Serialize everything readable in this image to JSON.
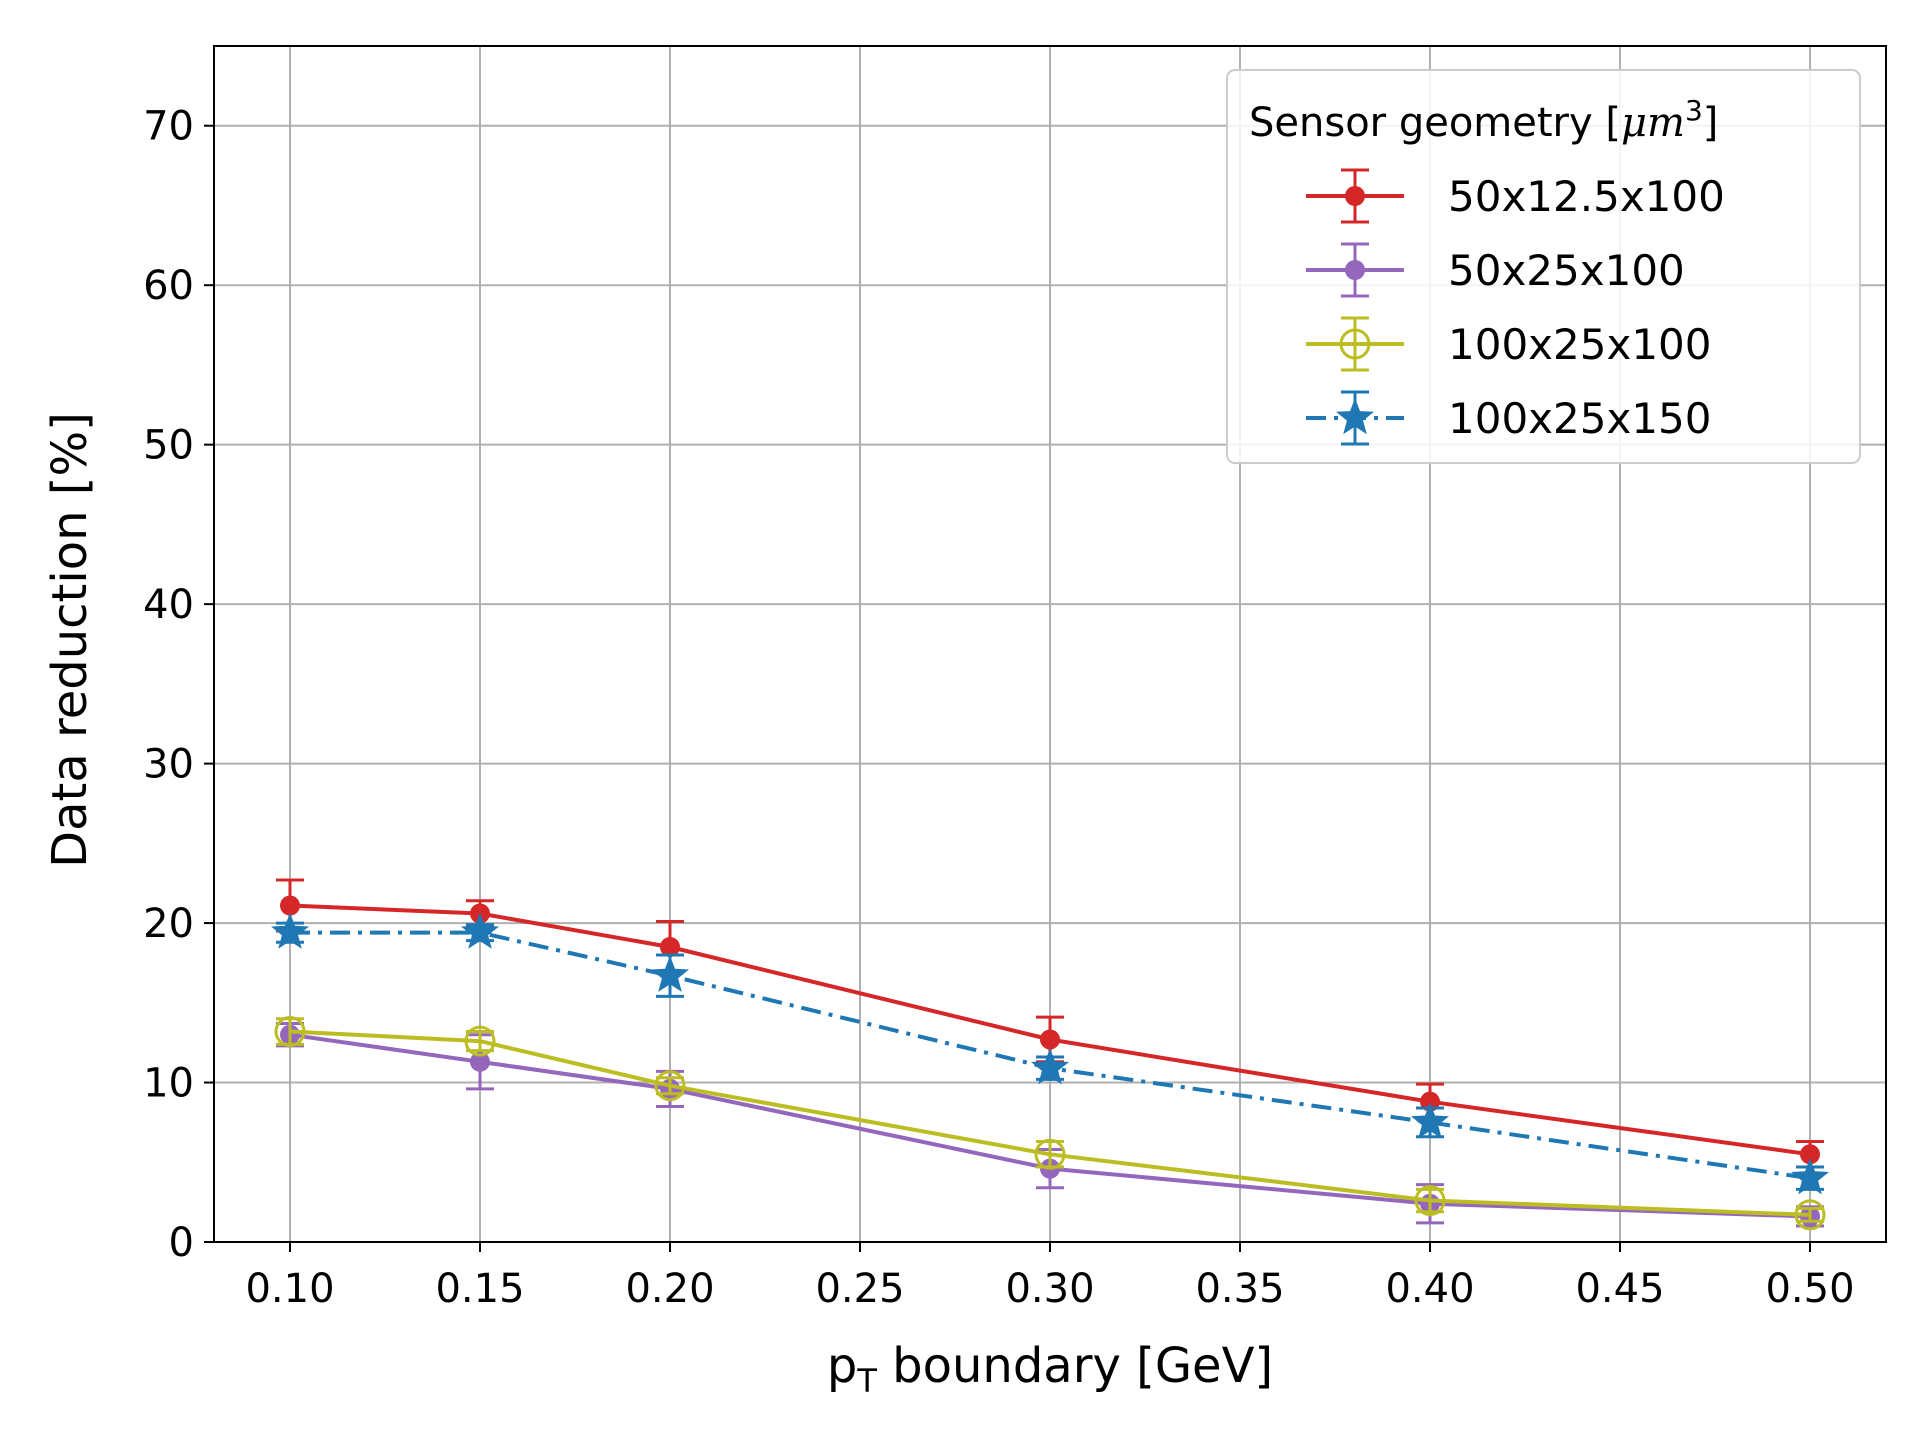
{
  "chart_data": {
    "type": "line",
    "x": [
      0.1,
      0.15,
      0.2,
      0.3,
      0.4,
      0.5
    ],
    "xlabel_main": "p",
    "xlabel_sub": "T",
    "xlabel_rest": " boundary [GeV]",
    "ylabel": "Data reduction [%]",
    "xlim": [
      0.08,
      0.52
    ],
    "ylim": [
      0,
      75
    ],
    "xticks": [
      "0.10",
      "0.15",
      "0.20",
      "0.25",
      "0.30",
      "0.35",
      "0.40",
      "0.45",
      "0.50"
    ],
    "yticks": [
      "0",
      "10",
      "20",
      "30",
      "40",
      "50",
      "60",
      "70"
    ],
    "grid": true,
    "legend": {
      "title_main": "Sensor geometry [",
      "title_math": "μm",
      "title_sup": "3",
      "title_close": "]",
      "placement": "top-right"
    },
    "series": [
      {
        "name": "50x12.5x100",
        "color": "#d62728",
        "marker": "circle",
        "linestyle": "solid",
        "values": [
          21.1,
          20.6,
          18.5,
          12.7,
          8.8,
          5.5
        ],
        "errors": [
          1.6,
          0.8,
          1.6,
          1.4,
          1.1,
          0.8
        ]
      },
      {
        "name": "50x25x100",
        "color": "#9467bd",
        "marker": "circle",
        "linestyle": "solid",
        "values": [
          13.0,
          11.3,
          9.6,
          4.6,
          2.4,
          1.6
        ],
        "errors": [
          0.7,
          1.7,
          1.1,
          1.2,
          1.2,
          0.6
        ]
      },
      {
        "name": "100x25x100",
        "color": "#bcbd22",
        "marker": "open-circle",
        "linestyle": "solid",
        "values": [
          13.2,
          12.6,
          9.8,
          5.5,
          2.6,
          1.7
        ],
        "errors": [
          0.8,
          0.6,
          0.5,
          0.8,
          0.7,
          0.4
        ]
      },
      {
        "name": "100x25x150",
        "color": "#1f77b4",
        "marker": "star",
        "linestyle": "dashdot",
        "values": [
          19.4,
          19.4,
          16.7,
          10.9,
          7.5,
          4.0
        ],
        "errors": [
          0.6,
          0.5,
          1.3,
          0.7,
          0.9,
          0.7
        ]
      }
    ]
  }
}
